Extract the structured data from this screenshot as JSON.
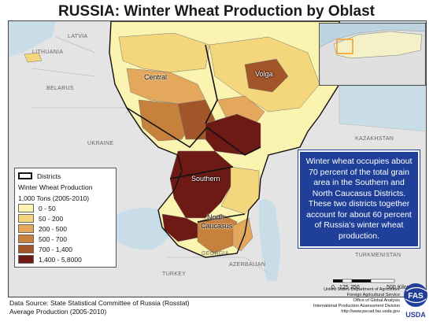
{
  "title": "RUSSIA:  Winter Wheat Production by Oblast",
  "legend": {
    "districts_label": "Districts",
    "heading": "Winter Wheat Production",
    "units": "1,000 Tons (2005-2010)",
    "classes": [
      {
        "label": "0 - 50",
        "color": "#fbf3b0"
      },
      {
        "label": "50 - 200",
        "color": "#f4d77d"
      },
      {
        "label": "200 - 500",
        "color": "#e3a85c"
      },
      {
        "label": "500 - 700",
        "color": "#c6813d"
      },
      {
        "label": "700 - 1,400",
        "color": "#a3552a"
      },
      {
        "label": "1,400 - 5,8000",
        "color": "#6e1a14"
      }
    ]
  },
  "districts": {
    "central": "Central",
    "volga": "Volga",
    "southern": "Southern",
    "north_caucasus_1": "North",
    "north_caucasus_2": "Caucasus"
  },
  "countries": {
    "latvia": "LATVIA",
    "lithuania": "LITHUANIA",
    "belarus": "BELARUS",
    "ukraine": "UKRAINE",
    "kazakhstan": "KAZAKHSTAN",
    "georgia": "GEORGIA",
    "azerbaijan": "AZERBAIJAN",
    "turkmenistan": "TURKMENISTAN",
    "turkey": "TURKEY"
  },
  "callout": "Winter wheat occupies about 70 percent of the total grain area in the Southern and North Caucasus Districts.  These two districts together account for about 60 percent of Russia's winter wheat production.",
  "scale": {
    "ticks": [
      "0",
      "125",
      "250",
      "500"
    ],
    "unit": "Kilometers"
  },
  "source": {
    "line1": "Data Source: State Statistical Committee of Russia (Rosstat)",
    "line2": "Average Production (2005-2010)"
  },
  "agency": [
    "United States Department of Agriculture",
    "Foreign Agricultural Service",
    "Office of Global Analysis",
    "International Production Assessment Division",
    "http://www.pecad.fas.usda.gov"
  ],
  "logo": {
    "top": "FAS",
    "bottom": "USDA"
  },
  "colors": {
    "water": "#c9dde8",
    "land_other": "#e6e6e6",
    "callout_bg": "#1f3f99"
  }
}
